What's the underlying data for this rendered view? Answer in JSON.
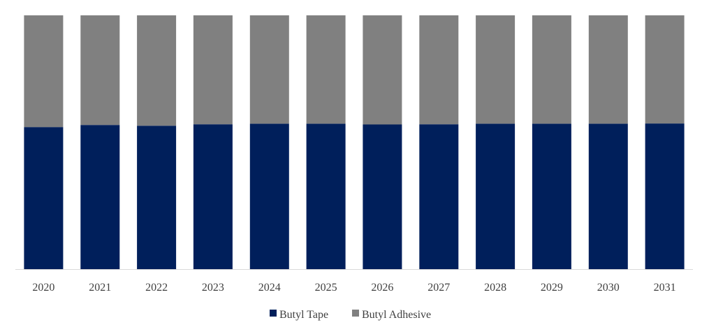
{
  "chart_data": {
    "type": "bar",
    "stacked": true,
    "percent_stacked": true,
    "categories": [
      "2020",
      "2021",
      "2022",
      "2023",
      "2024",
      "2025",
      "2026",
      "2027",
      "2028",
      "2029",
      "2030",
      "2031"
    ],
    "series": [
      {
        "name": "Butyl Tape",
        "color": "#001f5b",
        "values": [
          56.0,
          56.8,
          56.5,
          57.1,
          57.3,
          57.3,
          57.0,
          57.1,
          57.3,
          57.3,
          57.3,
          57.4
        ]
      },
      {
        "name": "Butyl Adhesive",
        "color": "#808080",
        "values": [
          44.0,
          43.2,
          43.5,
          42.9,
          42.7,
          42.7,
          43.0,
          42.9,
          42.7,
          42.7,
          42.7,
          42.6
        ]
      }
    ],
    "ylim": [
      0,
      100
    ],
    "grid": false,
    "legend_position": "bottom"
  }
}
